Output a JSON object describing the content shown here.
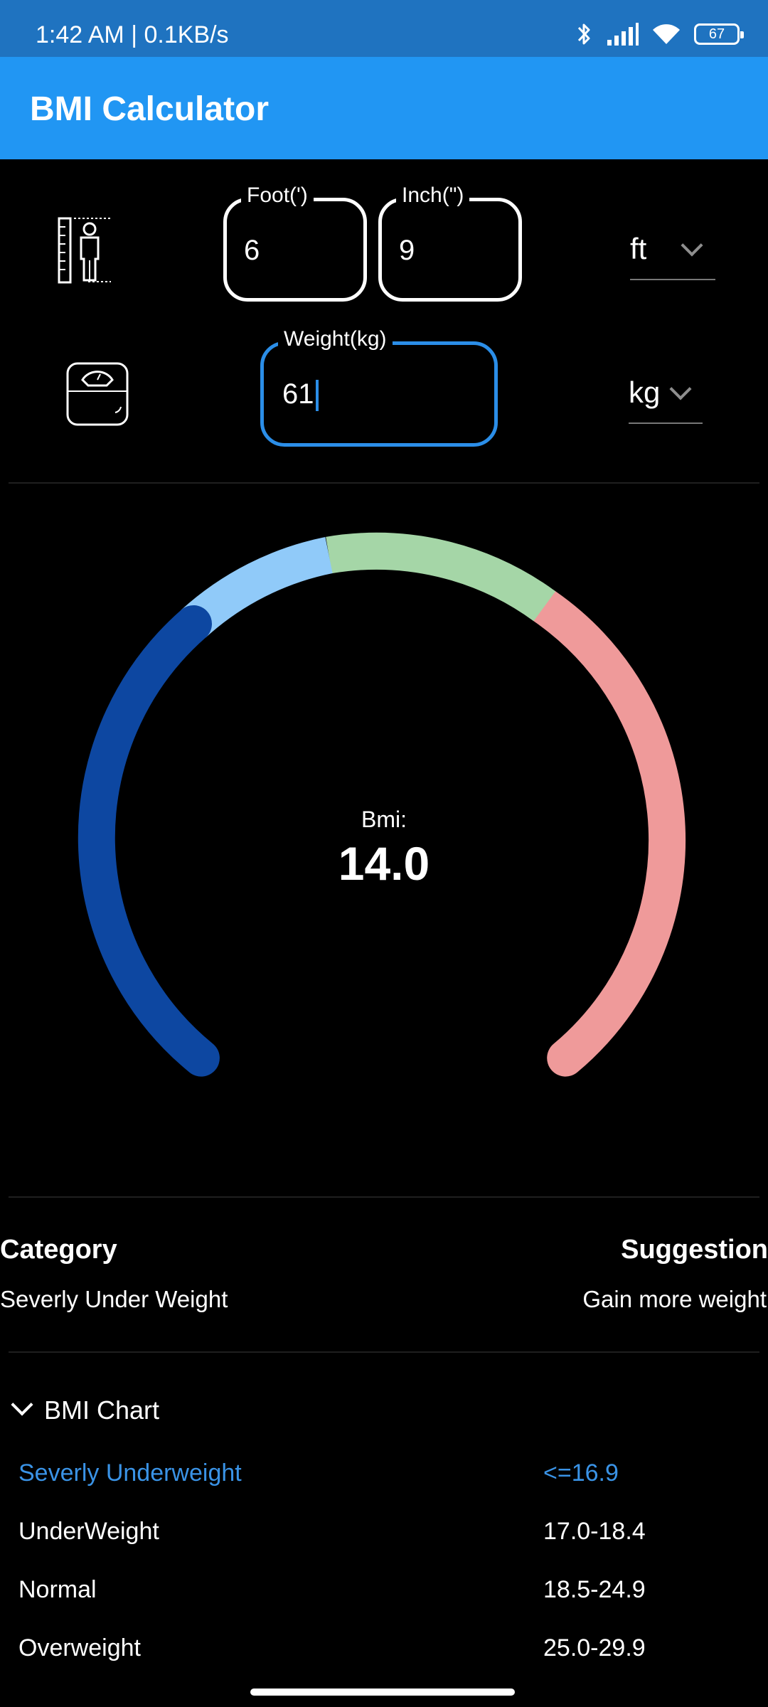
{
  "status_bar": {
    "time": "1:42 AM | 0.1KB/s",
    "battery": "67",
    "icons": [
      "bluetooth-icon",
      "signal-icon",
      "wifi-icon",
      "battery-icon"
    ]
  },
  "app_bar": {
    "title": "BMI Calculator",
    "color": "#2196f3"
  },
  "height": {
    "icon": "height-measure-icon",
    "foot_label": "Foot(')",
    "foot_value": "6",
    "inch_label": "Inch(\")",
    "inch_value": "9",
    "unit": "ft"
  },
  "weight": {
    "icon": "weighing-scale-icon",
    "label": "Weight(kg)",
    "value": "61",
    "unit": "kg"
  },
  "gauge": {
    "label": "Bmi:",
    "value": "14.0",
    "segments": [
      {
        "color": "#0d47a1"
      },
      {
        "color": "#90caf9"
      },
      {
        "color": "#a5d6a7"
      },
      {
        "color": "#ef9a9a"
      }
    ]
  },
  "result": {
    "category_header": "Category",
    "category_value": "Severly Under Weight",
    "suggestion_header": "Suggestion",
    "suggestion_value": "Gain more weight"
  },
  "chart": {
    "title": "BMI Chart",
    "rows": [
      {
        "category": "Severly Underweight",
        "range": "<=16.9",
        "highlight": true
      },
      {
        "category": "UnderWeight",
        "range": "17.0-18.4",
        "highlight": false
      },
      {
        "category": "Normal",
        "range": "18.5-24.9",
        "highlight": false
      },
      {
        "category": "Overweight",
        "range": "25.0-29.9",
        "highlight": false
      }
    ],
    "highlight_color": "#3a93e6"
  }
}
